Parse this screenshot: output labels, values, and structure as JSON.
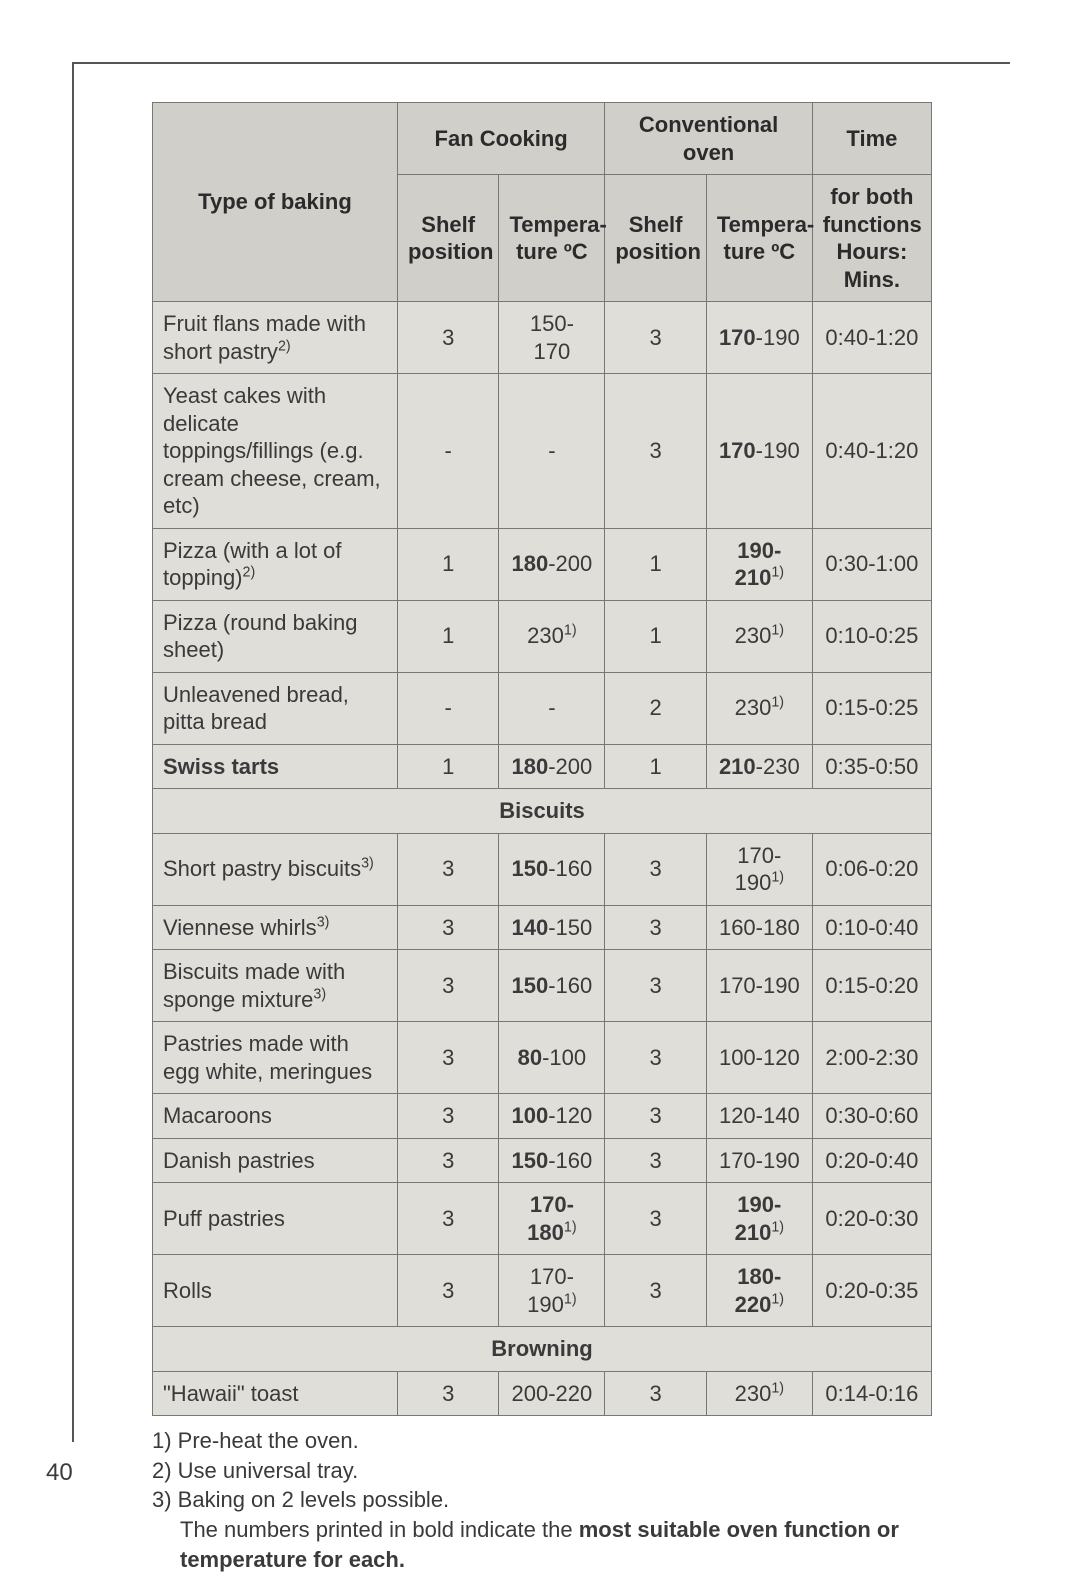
{
  "table": {
    "background_color": "#e0ded9",
    "header_bg": "#d1cfca",
    "border_color": "#777777",
    "font_size": 22,
    "headers": {
      "type": "Type of baking",
      "fan": "Fan Cooking",
      "conv": "Conventional oven",
      "time": "Time",
      "shelf": "Shelf\nposition",
      "temp_html": "Tempera-\nture\n",
      "temp_unit": "ºC",
      "time_sub": "for both functions Hours: Mins."
    },
    "rows": [
      {
        "type_plain": "Fruit flans made with short pastry",
        "type_sup": "2)",
        "fan_shelf": "3",
        "fan_temp": "150- 170",
        "fan_bold": false,
        "conv_shelf": "3",
        "conv_temp": "170-190",
        "conv_bold_first": true,
        "conv_sup": "",
        "time": "0:40-1:20"
      },
      {
        "type_plain": "Yeast cakes with delicate toppings/fillings (e.g. cream cheese, cream, etc)",
        "type_sup": "",
        "fan_shelf": "-",
        "fan_temp": "-",
        "fan_bold": false,
        "conv_shelf": "3",
        "conv_temp": "170-190",
        "conv_bold_first": true,
        "conv_sup": "",
        "time": "0:40-1:20"
      },
      {
        "type_plain": "Pizza (with a lot of topping)",
        "type_sup": "2)",
        "fan_shelf": "1",
        "fan_temp": "180-200",
        "fan_bold_first": true,
        "conv_shelf": "1",
        "conv_temp": "190-210",
        "conv_bold_all": true,
        "conv_sup": "1)",
        "time": "0:30-1:00"
      },
      {
        "type_plain": "Pizza (round baking sheet)",
        "type_sup": "",
        "fan_shelf": "1",
        "fan_temp": "230",
        "fan_sup": "1)",
        "fan_bold": false,
        "conv_shelf": "1",
        "conv_temp": "230",
        "conv_sup": "1)",
        "time": "0:10-0:25"
      },
      {
        "type_plain": "Unleavened bread, pitta bread",
        "type_sup": "",
        "fan_shelf": "-",
        "fan_temp": "-",
        "conv_shelf": "2",
        "conv_temp": "230",
        "conv_sup": "1)",
        "time": "0:15-0:25"
      },
      {
        "type_plain": "Swiss tarts",
        "type_bold": true,
        "fan_shelf": "1",
        "fan_temp": "180-200",
        "fan_bold_first": true,
        "conv_shelf": "1",
        "conv_temp": "210-230",
        "conv_bold_first": true,
        "time": "0:35-0:50"
      },
      {
        "section": "Biscuits"
      },
      {
        "type_plain": "Short pastry biscuits",
        "type_sup": "3)",
        "fan_shelf": "3",
        "fan_temp": "150-160",
        "fan_bold_first": true,
        "conv_shelf": "3",
        "conv_temp": "170-190",
        "conv_sup": "1)",
        "time": "0:06-0:20"
      },
      {
        "type_plain": "Viennese whirls",
        "type_sup": "3)",
        "fan_shelf": "3",
        "fan_temp": "140-150",
        "fan_bold_first": true,
        "conv_shelf": "3",
        "conv_temp": "160-180",
        "time": "0:10-0:40"
      },
      {
        "type_plain": "Biscuits made with sponge mixture",
        "type_sup": "3)",
        "fan_shelf": "3",
        "fan_temp": "150-160",
        "fan_bold_first": true,
        "conv_shelf": "3",
        "conv_temp": "170-190",
        "time": "0:15-0:20"
      },
      {
        "type_plain": "Pastries made with egg white, meringues",
        "fan_shelf": "3",
        "fan_temp": "80-100",
        "fan_bold_first": true,
        "conv_shelf": "3",
        "conv_temp": "100-120",
        "time": "2:00-2:30"
      },
      {
        "type_plain": "Macaroons",
        "fan_shelf": "3",
        "fan_temp": "100-120",
        "fan_bold_first": true,
        "conv_shelf": "3",
        "conv_temp": "120-140",
        "time": "0:30-0:60"
      },
      {
        "type_plain": "Danish pastries",
        "fan_shelf": "3",
        "fan_temp": "150-160",
        "fan_bold_first": true,
        "conv_shelf": "3",
        "conv_temp": "170-190",
        "time": "0:20-0:40"
      },
      {
        "type_plain": "Puff pastries",
        "fan_shelf": "3",
        "fan_temp": "170-180",
        "fan_bold_all": true,
        "fan_sup": "1)",
        "conv_shelf": "3",
        "conv_temp": "190-210",
        "conv_bold_all": true,
        "conv_sup": "1)",
        "time": "0:20-0:30"
      },
      {
        "type_plain": "Rolls",
        "fan_shelf": "3",
        "fan_temp": "170-190",
        "fan_sup": "1)",
        "conv_shelf": "3",
        "conv_temp": "180-220",
        "conv_bold_all": true,
        "conv_sup": "1)",
        "time": "0:20-0:35"
      },
      {
        "section": "Browning"
      },
      {
        "type_plain": "\"Hawaii\" toast",
        "fan_shelf": "3",
        "fan_temp": "200-220",
        "conv_shelf": "3",
        "conv_temp": "230",
        "conv_sup": "1)",
        "time": "0:14-0:16"
      }
    ]
  },
  "notes": {
    "n1": "1) Pre-heat the oven.",
    "n2": "2) Use universal tray.",
    "n3": "3) Baking on 2 levels possible.",
    "extra_plain": "The numbers printed in bold indicate the ",
    "extra_bold": "most suitable oven function or temperature for each."
  },
  "page_number": "40"
}
